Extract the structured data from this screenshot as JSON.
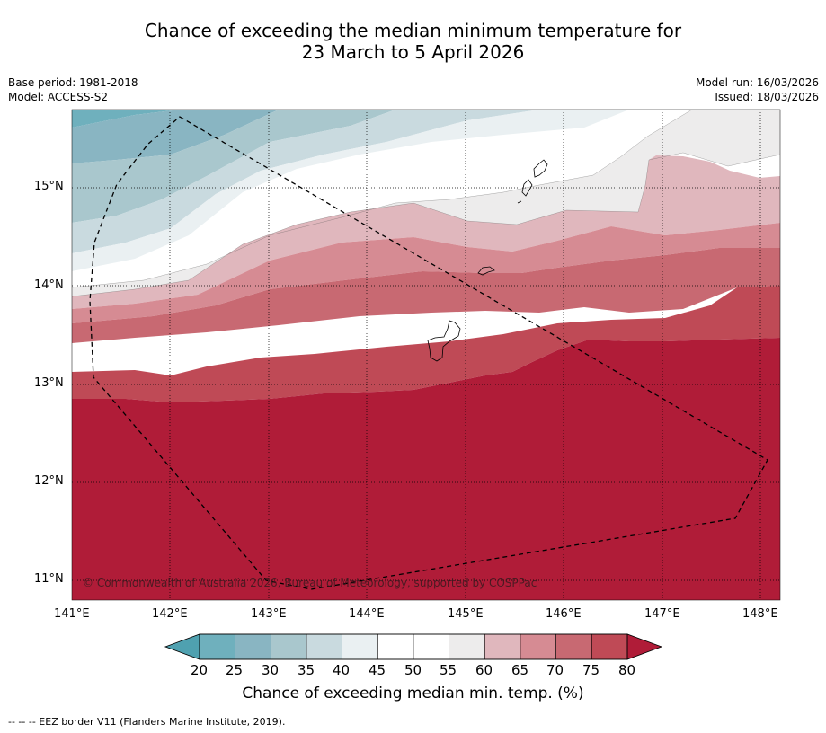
{
  "title_line1": "Chance of exceeding the median minimum temperature for",
  "title_line2": "23 March to 5 April 2026",
  "base_period": "Base period: 1981-2018",
  "model": "Model: ACCESS-S2",
  "model_run": "Model run: 16/03/2026",
  "issued": "Issued: 18/03/2026",
  "copyright": "© Commonwealth of Australia 2026, Bureau of Meteorology, supported by COSPPac",
  "latitude_labels": [
    "15°N",
    "14°N",
    "13°N",
    "12°N",
    "11°N"
  ],
  "longitude_labels": [
    "141°E",
    "142°E",
    "143°E",
    "144°E",
    "145°E",
    "146°E",
    "147°E",
    "148°E"
  ],
  "colorbar": {
    "ticks": [
      "20",
      "25",
      "30",
      "35",
      "40",
      "45",
      "50",
      "55",
      "60",
      "65",
      "70",
      "75",
      "80"
    ],
    "colors": [
      "#4fa1b0",
      "#6fb0bd",
      "#89b5c2",
      "#a9c7cd",
      "#c9dadf",
      "#eaf0f2",
      "#ffffff",
      "#ffffff",
      "#edecec",
      "#e0b7bd",
      "#d68b93",
      "#c86972",
      "#bf4a56",
      "#b01c38"
    ],
    "title": "Chance of exceeding median min. temp. (%)"
  },
  "legend_footnote": "--  --  -- EEZ border V11 (Flanders Marine Institute, 2019)."
}
